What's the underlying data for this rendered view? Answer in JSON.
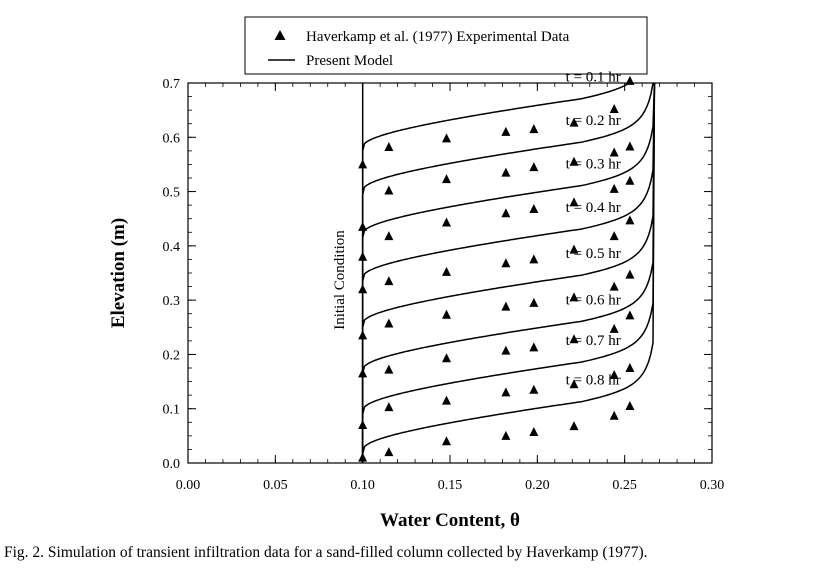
{
  "chart_data": {
    "type": "line",
    "xlabel": "Water Content, θ",
    "ylabel": "Elevation (m)",
    "xlim": [
      0.0,
      0.3
    ],
    "ylim": [
      0.0,
      0.7
    ],
    "xticks": [
      "0.00",
      "0.05",
      "0.10",
      "0.15",
      "0.20",
      "0.25",
      "0.30"
    ],
    "yticks": [
      "0.0",
      "0.1",
      "0.2",
      "0.3",
      "0.4",
      "0.5",
      "0.6",
      "0.7"
    ],
    "grid": false,
    "legend": {
      "placement": "top-center",
      "entries": [
        {
          "label": "Haverkamp et al. (1977) Experimental Data",
          "marker": "triangle"
        },
        {
          "label": "Present Model",
          "marker": "line"
        }
      ]
    },
    "initial_condition": {
      "label": "Initial Condition",
      "theta": 0.1
    },
    "theta_sat": 0.267,
    "series": [
      {
        "name": "t = 0.1 hr",
        "front": 0.58,
        "points": [
          [
            0.1,
            0.55
          ],
          [
            0.115,
            0.582
          ],
          [
            0.148,
            0.598
          ],
          [
            0.182,
            0.61
          ],
          [
            0.198,
            0.615
          ],
          [
            0.221,
            0.627
          ],
          [
            0.244,
            0.652
          ],
          [
            0.253,
            0.704
          ]
        ]
      },
      {
        "name": "t = 0.2 hr",
        "front": 0.5,
        "points": [
          [
            0.1,
            0.435
          ],
          [
            0.115,
            0.502
          ],
          [
            0.148,
            0.523
          ],
          [
            0.182,
            0.535
          ],
          [
            0.198,
            0.545
          ],
          [
            0.221,
            0.555
          ],
          [
            0.244,
            0.572
          ],
          [
            0.253,
            0.583
          ]
        ]
      },
      {
        "name": "t = 0.3 hr",
        "front": 0.42,
        "points": [
          [
            0.1,
            0.38
          ],
          [
            0.115,
            0.418
          ],
          [
            0.148,
            0.443
          ],
          [
            0.182,
            0.46
          ],
          [
            0.198,
            0.468
          ],
          [
            0.221,
            0.48
          ],
          [
            0.244,
            0.505
          ],
          [
            0.253,
            0.52
          ]
        ]
      },
      {
        "name": "t = 0.4 hr",
        "front": 0.34,
        "points": [
          [
            0.1,
            0.32
          ],
          [
            0.115,
            0.335
          ],
          [
            0.148,
            0.352
          ],
          [
            0.182,
            0.368
          ],
          [
            0.198,
            0.375
          ],
          [
            0.221,
            0.393
          ],
          [
            0.244,
            0.418
          ],
          [
            0.253,
            0.447
          ]
        ]
      },
      {
        "name": "t = 0.5 hr",
        "front": 0.255,
        "points": [
          [
            0.1,
            0.235
          ],
          [
            0.115,
            0.257
          ],
          [
            0.148,
            0.273
          ],
          [
            0.182,
            0.288
          ],
          [
            0.198,
            0.295
          ],
          [
            0.221,
            0.305
          ],
          [
            0.244,
            0.325
          ],
          [
            0.253,
            0.347
          ]
        ]
      },
      {
        "name": "t = 0.6 hr",
        "front": 0.17,
        "points": [
          [
            0.1,
            0.165
          ],
          [
            0.115,
            0.172
          ],
          [
            0.148,
            0.193
          ],
          [
            0.182,
            0.207
          ],
          [
            0.198,
            0.213
          ],
          [
            0.221,
            0.228
          ],
          [
            0.244,
            0.247
          ],
          [
            0.253,
            0.272
          ]
        ]
      },
      {
        "name": "t = 0.7 hr",
        "front": 0.095,
        "points": [
          [
            0.1,
            0.07
          ],
          [
            0.115,
            0.103
          ],
          [
            0.148,
            0.115
          ],
          [
            0.182,
            0.13
          ],
          [
            0.198,
            0.135
          ],
          [
            0.221,
            0.145
          ],
          [
            0.244,
            0.162
          ],
          [
            0.253,
            0.175
          ]
        ]
      },
      {
        "name": "t = 0.8 hr",
        "front": 0.022,
        "points": [
          [
            0.1,
            0.01
          ],
          [
            0.115,
            0.02
          ],
          [
            0.148,
            0.04
          ],
          [
            0.182,
            0.05
          ],
          [
            0.198,
            0.057
          ],
          [
            0.221,
            0.068
          ],
          [
            0.244,
            0.087
          ],
          [
            0.253,
            0.105
          ]
        ]
      }
    ],
    "label_anchor_theta": 0.232
  },
  "caption": "Fig. 2. Simulation of transient infiltration data for a sand-filled column collected by Haverkamp (1977)."
}
